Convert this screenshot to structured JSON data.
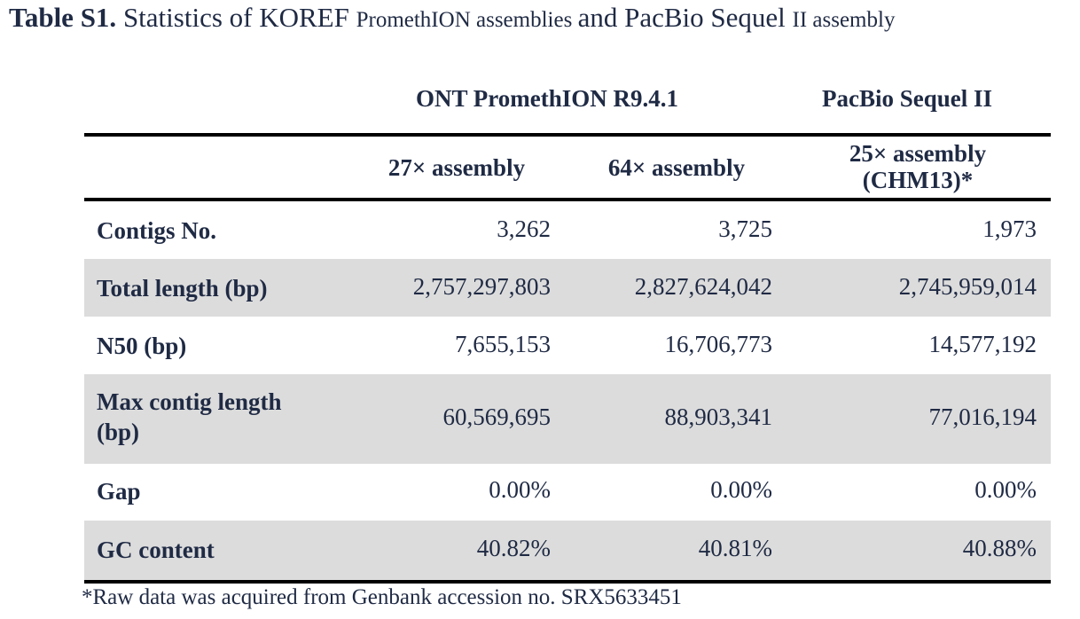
{
  "title": {
    "label": "Table S1.",
    "part1": " Statistics of KOREF ",
    "part2": "PromethION assemblies ",
    "part3": "and PacBio Sequel ",
    "part4": "II assembly"
  },
  "table": {
    "groups": {
      "ont": "ONT PromethION R9.4.1",
      "pacbio": "PacBio Sequel II"
    },
    "columns": [
      "27× assembly",
      "64× assembly",
      "25× assembly (CHM13)*"
    ],
    "column3_line1": "25× assembly",
    "column3_line2": "(CHM13)*",
    "rows": [
      {
        "label": "Contigs No.",
        "values": [
          "3,262",
          "3,725",
          "1,973"
        ]
      },
      {
        "label": "Total length (bp)",
        "values": [
          "2,757,297,803",
          "2,827,624,042",
          "2,745,959,014"
        ]
      },
      {
        "label": "N50 (bp)",
        "values": [
          "7,655,153",
          "16,706,773",
          "14,577,192"
        ]
      },
      {
        "label": "Max contig length (bp)",
        "label_line1": "Max contig length",
        "label_line2": "(bp)",
        "values": [
          "60,569,695",
          "88,903,341",
          "77,016,194"
        ]
      },
      {
        "label": "Gap",
        "values": [
          "0.00%",
          "0.00%",
          "0.00%"
        ]
      },
      {
        "label": "GC content",
        "values": [
          "40.82%",
          "40.81%",
          "40.88%"
        ]
      }
    ]
  },
  "footnote": "*Raw data was acquired from Genbank accession no. SRX5633451",
  "colors": {
    "text": "#1f2a44",
    "row_shading": "#dcdcdc",
    "rules": "#000000"
  }
}
